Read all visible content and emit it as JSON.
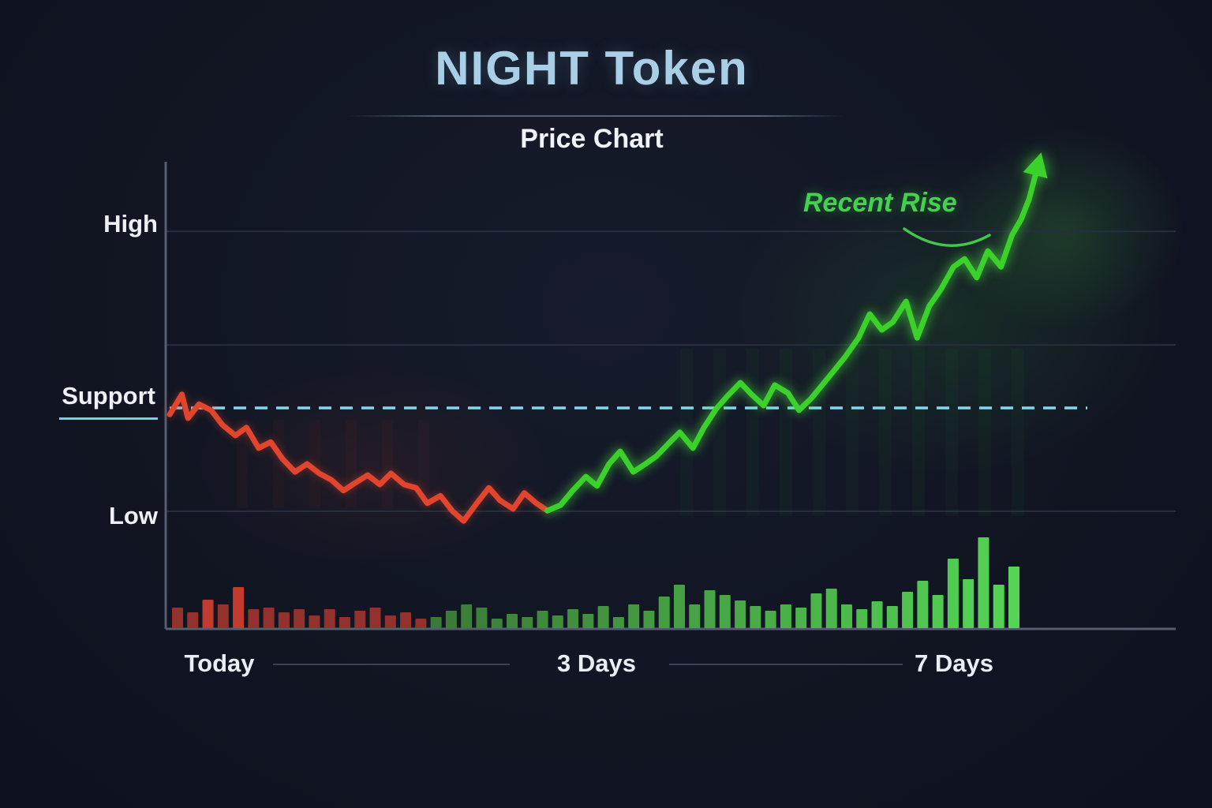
{
  "header": {
    "title": "NIGHT Token",
    "subtitle": "Price Chart"
  },
  "colors": {
    "background": "#121726",
    "title": "#a8cfe6",
    "text": "#edf1f6",
    "axis": "#555d6e",
    "grid": "#272e3e",
    "support_line": "#86d7e9",
    "x_line": "#3a4253",
    "decline": "#e2452e",
    "rise": "#3cd12a",
    "annotation": "#43d14f"
  },
  "chart_data": {
    "type": "line",
    "title": "NIGHT Token",
    "subtitle": "Price Chart",
    "annotation": "Recent Rise",
    "y_axis": {
      "labels": [
        "High",
        "Support",
        "Low"
      ]
    },
    "x_axis": {
      "labels": [
        "Today",
        "3 Days",
        "7 Days"
      ]
    },
    "grid_levels": [
      0.851,
      0.608,
      0.252
    ],
    "support_level": 0.473,
    "legend": "off",
    "series": [
      {
        "name": "decline",
        "color": "#e2452e",
        "points": [
          [
            0.004,
            0.459
          ],
          [
            0.016,
            0.502
          ],
          [
            0.022,
            0.451
          ],
          [
            0.033,
            0.481
          ],
          [
            0.045,
            0.468
          ],
          [
            0.056,
            0.437
          ],
          [
            0.069,
            0.414
          ],
          [
            0.08,
            0.431
          ],
          [
            0.092,
            0.387
          ],
          [
            0.104,
            0.4
          ],
          [
            0.116,
            0.363
          ],
          [
            0.128,
            0.336
          ],
          [
            0.14,
            0.353
          ],
          [
            0.152,
            0.333
          ],
          [
            0.164,
            0.319
          ],
          [
            0.176,
            0.296
          ],
          [
            0.188,
            0.313
          ],
          [
            0.2,
            0.329
          ],
          [
            0.212,
            0.309
          ],
          [
            0.223,
            0.333
          ],
          [
            0.236,
            0.309
          ],
          [
            0.248,
            0.302
          ],
          [
            0.259,
            0.269
          ],
          [
            0.272,
            0.285
          ],
          [
            0.284,
            0.252
          ],
          [
            0.295,
            0.231
          ],
          [
            0.308,
            0.269
          ],
          [
            0.32,
            0.302
          ],
          [
            0.331,
            0.275
          ],
          [
            0.344,
            0.257
          ],
          [
            0.355,
            0.291
          ],
          [
            0.367,
            0.269
          ],
          [
            0.378,
            0.253
          ]
        ]
      },
      {
        "name": "rise",
        "color": "#3cd12a",
        "points": [
          [
            0.378,
            0.253
          ],
          [
            0.391,
            0.265
          ],
          [
            0.403,
            0.296
          ],
          [
            0.416,
            0.326
          ],
          [
            0.427,
            0.306
          ],
          [
            0.439,
            0.353
          ],
          [
            0.45,
            0.38
          ],
          [
            0.463,
            0.336
          ],
          [
            0.475,
            0.353
          ],
          [
            0.486,
            0.37
          ],
          [
            0.498,
            0.397
          ],
          [
            0.509,
            0.421
          ],
          [
            0.522,
            0.387
          ],
          [
            0.533,
            0.431
          ],
          [
            0.545,
            0.471
          ],
          [
            0.556,
            0.498
          ],
          [
            0.569,
            0.527
          ],
          [
            0.58,
            0.502
          ],
          [
            0.592,
            0.478
          ],
          [
            0.603,
            0.522
          ],
          [
            0.616,
            0.505
          ],
          [
            0.627,
            0.468
          ],
          [
            0.639,
            0.493
          ],
          [
            0.65,
            0.522
          ],
          [
            0.663,
            0.556
          ],
          [
            0.673,
            0.583
          ],
          [
            0.686,
            0.623
          ],
          [
            0.697,
            0.674
          ],
          [
            0.709,
            0.64
          ],
          [
            0.72,
            0.657
          ],
          [
            0.733,
            0.701
          ],
          [
            0.744,
            0.623
          ],
          [
            0.756,
            0.691
          ],
          [
            0.767,
            0.725
          ],
          [
            0.78,
            0.775
          ],
          [
            0.791,
            0.792
          ],
          [
            0.803,
            0.752
          ],
          [
            0.814,
            0.809
          ],
          [
            0.827,
            0.775
          ],
          [
            0.838,
            0.843
          ],
          [
            0.847,
            0.877
          ],
          [
            0.855,
            0.921
          ],
          [
            0.861,
            0.971
          ]
        ]
      }
    ],
    "volume": {
      "values": [
        26,
        20,
        36,
        30,
        52,
        24,
        26,
        20,
        24,
        16,
        24,
        14,
        22,
        26,
        16,
        20,
        12,
        14,
        22,
        30,
        26,
        12,
        18,
        14,
        22,
        16,
        24,
        18,
        28,
        14,
        30,
        22,
        40,
        55,
        30,
        48,
        42,
        35,
        28,
        22,
        30,
        26,
        44,
        50,
        30,
        24,
        34,
        28,
        46,
        60,
        42,
        88,
        62,
        115,
        55,
        78
      ],
      "split_index": 17,
      "red": "#93322c",
      "red_bright": "#c23b2e",
      "green_dark": "#3a7a36",
      "green_bright": "#55d455"
    }
  }
}
